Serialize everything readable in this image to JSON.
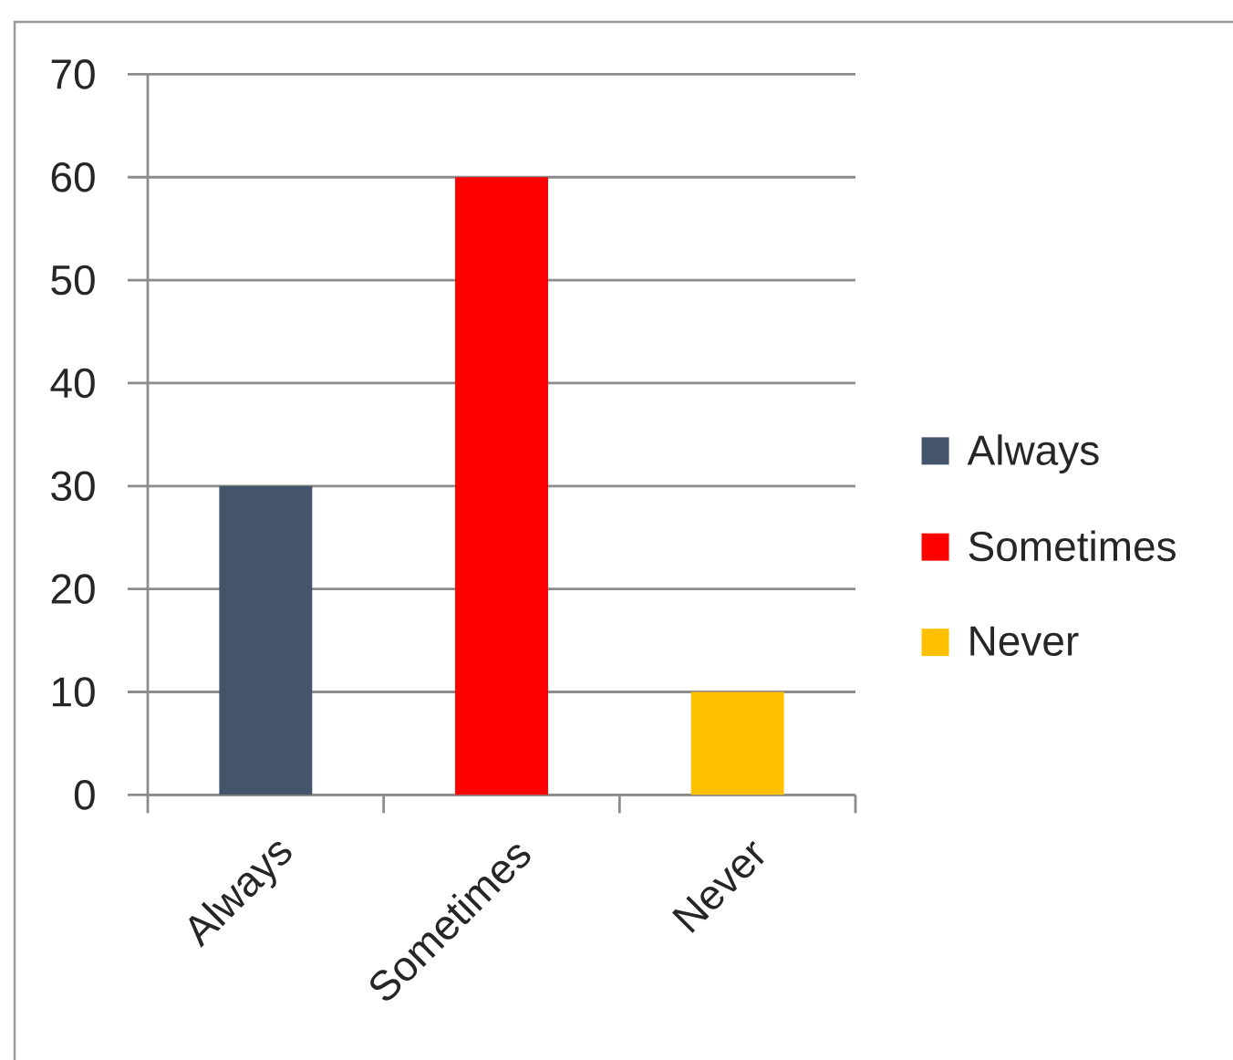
{
  "chart_data": {
    "type": "bar",
    "categories": [
      "Always",
      "Sometimes",
      "Never"
    ],
    "series": [
      {
        "name": "Always",
        "color": "#44546a",
        "values": [
          30,
          null,
          null
        ]
      },
      {
        "name": "Sometimes",
        "color": "#ff0000",
        "values": [
          null,
          60,
          null
        ]
      },
      {
        "name": "Never",
        "color": "#ffc000",
        "values": [
          null,
          null,
          10
        ]
      }
    ],
    "ylim": [
      0,
      70
    ],
    "yticks": [
      0,
      10,
      20,
      30,
      40,
      50,
      60,
      70
    ],
    "grid": "y",
    "legend": "right"
  }
}
